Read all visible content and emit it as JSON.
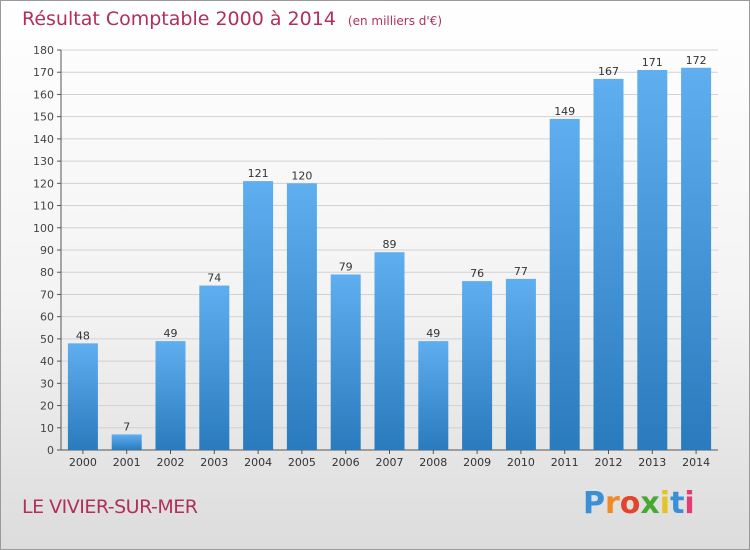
{
  "page": {
    "title": "Résultat Comptable 2000 à 2014",
    "subtitle": "(en milliers d'€)",
    "commune": "LE VIVIER-SUR-MER",
    "logo_letters": [
      "P",
      "r",
      "o",
      "x",
      "i",
      "t",
      "i"
    ],
    "logo_colors": [
      "#3a8fd6",
      "#f08a24",
      "#e2452c",
      "#4aa832",
      "#e4c324",
      "#3a8fd6",
      "#e23c72"
    ]
  },
  "colors": {
    "title": "#b0305a",
    "bar_light": "#5eaef0",
    "bar_dark": "#2a7bbd",
    "grid": "#d2d2d2",
    "axis": "#555555"
  },
  "chart_data": {
    "type": "bar",
    "categories": [
      "2000",
      "2001",
      "2002",
      "2003",
      "2004",
      "2005",
      "2006",
      "2007",
      "2008",
      "2009",
      "2010",
      "2011",
      "2012",
      "2013",
      "2014"
    ],
    "values": [
      48,
      7,
      49,
      74,
      121,
      120,
      79,
      89,
      49,
      76,
      77,
      149,
      167,
      171,
      172
    ],
    "data_labels": [
      "48",
      "7",
      "49",
      "74",
      "121",
      "120",
      "79",
      "89",
      "49",
      "76",
      "77",
      "149",
      "167",
      "171",
      "172"
    ],
    "y_ticks": [
      0,
      10,
      20,
      30,
      40,
      50,
      60,
      70,
      80,
      90,
      100,
      110,
      120,
      130,
      140,
      150,
      160,
      170,
      180
    ],
    "ylim": [
      0,
      180
    ],
    "grid": true,
    "legend": "none"
  }
}
